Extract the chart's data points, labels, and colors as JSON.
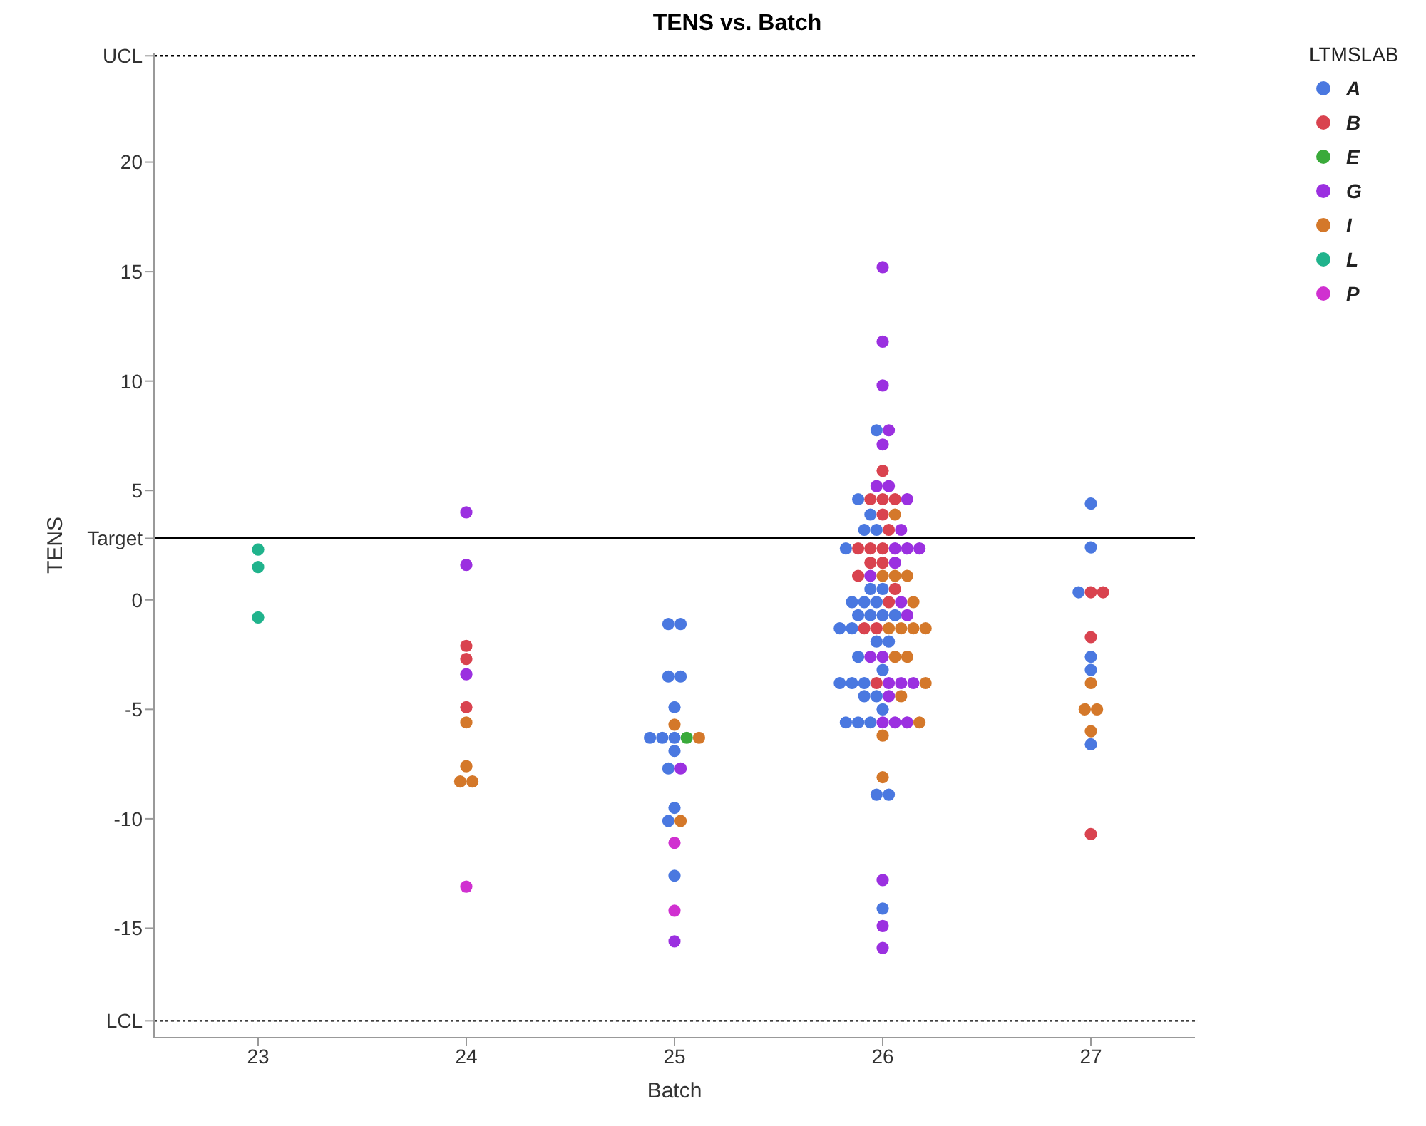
{
  "chart_data": {
    "type": "scatter",
    "title": "TENS vs. Batch",
    "xlabel": "Batch",
    "ylabel": "TENS",
    "legend_title": "LTMSLAB",
    "categories": [
      "23",
      "24",
      "25",
      "26",
      "27"
    ],
    "ylim": [
      -20,
      25
    ],
    "yticks": [
      {
        "value": -19.23,
        "label": "LCL"
      },
      -15,
      -10,
      -5,
      0,
      {
        "value": 2.81,
        "label": "Target"
      },
      5,
      10,
      15,
      20,
      {
        "value": 24.86,
        "label": "UCL"
      }
    ],
    "ref_lines": [
      {
        "axis": "y",
        "value": 24.86,
        "line_style": "dotted",
        "color": "#000000"
      },
      {
        "axis": "y",
        "value": 2.81,
        "line_style": "solid",
        "color": "#000000"
      },
      {
        "axis": "y",
        "value": -19.23,
        "line_style": "dotted",
        "color": "#000000"
      }
    ],
    "series": [
      {
        "name": "A",
        "color": "#4a78e0",
        "x": [
          "25",
          "25",
          "25",
          "25",
          "25",
          "25",
          "25",
          "25",
          "25",
          "25",
          "25",
          "25",
          "25",
          "26",
          "26",
          "26",
          "26",
          "26",
          "26",
          "26",
          "26",
          "26",
          "26",
          "26",
          "26",
          "26",
          "26",
          "26",
          "26",
          "26",
          "26",
          "26",
          "26",
          "26",
          "26",
          "26",
          "26",
          "26",
          "26",
          "26",
          "26",
          "26",
          "26",
          "26",
          "26",
          "26",
          "27",
          "27",
          "27",
          "27",
          "27",
          "27"
        ],
        "values": [
          -1.1,
          -1.1,
          -3.5,
          -3.5,
          -4.9,
          -6.3,
          -6.3,
          -6.3,
          -6.9,
          -7.7,
          -9.5,
          -10.1,
          -12.6,
          7.75,
          4.6,
          3.9,
          3.2,
          3.2,
          2.35,
          0.5,
          0.5,
          -0.1,
          -0.1,
          -0.1,
          -0.7,
          -0.7,
          -0.7,
          -0.7,
          -1.3,
          -1.3,
          -1.9,
          -1.9,
          -2.6,
          -3.2,
          -3.8,
          -3.8,
          -3.8,
          -4.4,
          -4.4,
          -5.0,
          -5.6,
          -5.6,
          -5.6,
          -8.9,
          -8.9,
          -14.1,
          4.4,
          2.4,
          0.35,
          -2.6,
          -3.2,
          -6.6
        ]
      },
      {
        "name": "B",
        "color": "#d9434f",
        "x": [
          "24",
          "24",
          "24",
          "26",
          "26",
          "26",
          "26",
          "26",
          "26",
          "26",
          "26",
          "26",
          "26",
          "26",
          "26",
          "26",
          "26",
          "26",
          "26",
          "26",
          "27",
          "27",
          "27",
          "27"
        ],
        "values": [
          -2.1,
          -2.7,
          -4.9,
          5.9,
          4.6,
          4.6,
          4.6,
          3.9,
          3.2,
          2.35,
          2.35,
          2.35,
          1.7,
          1.7,
          1.1,
          0.5,
          -0.1,
          -1.3,
          -1.3,
          -3.8,
          0.35,
          0.35,
          -1.7,
          -10.7
        ]
      },
      {
        "name": "E",
        "color": "#3aaa3a",
        "x": [
          "25"
        ],
        "values": [
          -6.3
        ]
      },
      {
        "name": "G",
        "color": "#9b30e0",
        "x": [
          "24",
          "24",
          "24",
          "25",
          "25",
          "26",
          "26",
          "26",
          "26",
          "26",
          "26",
          "26",
          "26",
          "26",
          "26",
          "26",
          "26",
          "26",
          "26",
          "26",
          "26",
          "26",
          "26",
          "26",
          "26",
          "26",
          "26",
          "26",
          "26",
          "26",
          "26",
          "26",
          "26"
        ],
        "values": [
          4.0,
          1.6,
          -3.4,
          -7.7,
          -15.6,
          15.2,
          11.8,
          9.8,
          7.75,
          7.1,
          5.2,
          5.2,
          4.6,
          3.2,
          2.35,
          2.35,
          2.35,
          1.7,
          1.1,
          -0.1,
          -0.7,
          -2.6,
          -2.6,
          -3.8,
          -3.8,
          -3.8,
          -4.4,
          -5.6,
          -5.6,
          -5.6,
          -12.8,
          -14.9,
          -15.9
        ]
      },
      {
        "name": "I",
        "color": "#d4782a",
        "x": [
          "24",
          "24",
          "24",
          "24",
          "25",
          "25",
          "25",
          "26",
          "26",
          "26",
          "26",
          "26",
          "26",
          "26",
          "26",
          "26",
          "26",
          "26",
          "26",
          "26",
          "26",
          "26",
          "26",
          "27",
          "27",
          "27",
          "27"
        ],
        "values": [
          -5.6,
          -7.6,
          -8.3,
          -8.3,
          -5.7,
          -6.3,
          -10.1,
          3.9,
          1.1,
          1.1,
          1.1,
          -0.1,
          -1.3,
          -1.3,
          -1.3,
          -1.3,
          -2.6,
          -2.6,
          -3.8,
          -4.4,
          -5.6,
          -6.2,
          -8.1,
          -3.8,
          -5.0,
          -5.0,
          -6.0
        ]
      },
      {
        "name": "L",
        "color": "#20b38c",
        "x": [
          "23",
          "23",
          "23"
        ],
        "values": [
          2.3,
          1.5,
          -0.8
        ]
      },
      {
        "name": "P",
        "color": "#d030d0",
        "x": [
          "24",
          "25",
          "25"
        ],
        "values": [
          -13.1,
          -11.1,
          -14.2
        ]
      }
    ],
    "legend": "top right",
    "marker": "circle",
    "grid": false
  }
}
